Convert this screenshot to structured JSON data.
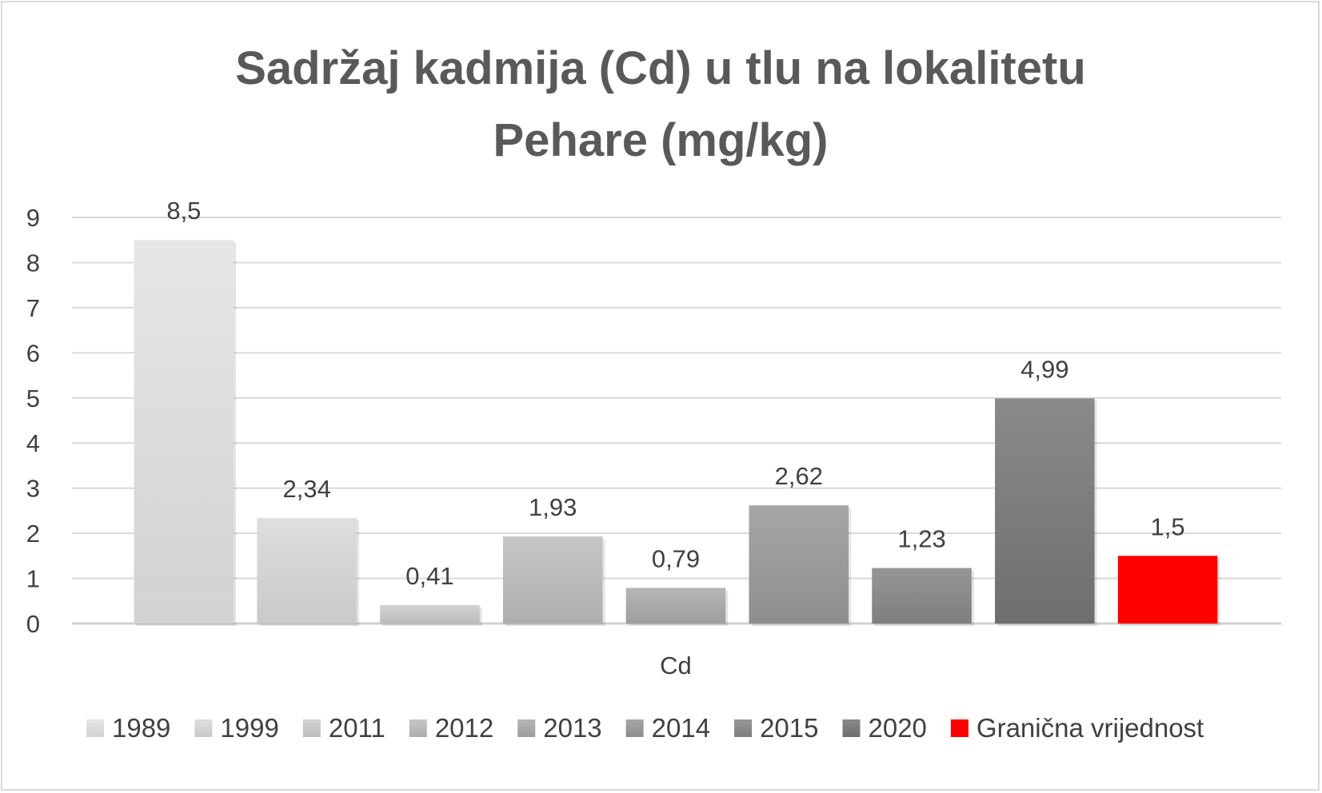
{
  "chart_data": {
    "type": "bar",
    "title_lines": [
      "Sadržaj kadmija (Cd) u tlu na lokalitetu",
      "Pehare (mg/kg)"
    ],
    "categories": [
      "Cd"
    ],
    "xlabel": "",
    "ylabel": "",
    "ylim": [
      0,
      9
    ],
    "yticks": [
      "0",
      "1",
      "2",
      "3",
      "4",
      "5",
      "6",
      "7",
      "8",
      "9"
    ],
    "grid": true,
    "legend_position": "bottom",
    "series": [
      {
        "name": "1989",
        "value": 8.5,
        "label": "8,5",
        "color_top": "#e6e6e6",
        "color_bottom": "#d2d2d2"
      },
      {
        "name": "1999",
        "value": 2.34,
        "label": "2,34",
        "color_top": "#dedede",
        "color_bottom": "#c9c9c9"
      },
      {
        "name": "2011",
        "value": 0.41,
        "label": "0,41",
        "color_top": "#d2d2d2",
        "color_bottom": "#bcbcbc"
      },
      {
        "name": "2012",
        "value": 1.93,
        "label": "1,93",
        "color_top": "#c6c6c6",
        "color_bottom": "#aeaeae"
      },
      {
        "name": "2013",
        "value": 0.79,
        "label": "0,79",
        "color_top": "#b6b6b6",
        "color_bottom": "#9e9e9e"
      },
      {
        "name": "2014",
        "value": 2.62,
        "label": "2,62",
        "color_top": "#a6a6a6",
        "color_bottom": "#8e8e8e"
      },
      {
        "name": "2015",
        "value": 1.23,
        "label": "1,23",
        "color_top": "#969696",
        "color_bottom": "#7e7e7e"
      },
      {
        "name": "2020",
        "value": 4.99,
        "label": "4,99",
        "color_top": "#8a8a8a",
        "color_bottom": "#6e6e6e"
      },
      {
        "name": "Granična vrijednost",
        "value": 1.5,
        "label": "1,5",
        "color_top": "#ff0000",
        "color_bottom": "#ff0000"
      }
    ]
  }
}
